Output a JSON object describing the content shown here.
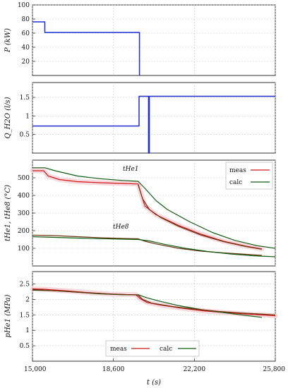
{
  "figure": {
    "x_axis": {
      "label": "t (s)",
      "range": [
        15000,
        25800
      ],
      "ticks": [
        15000,
        18600,
        22200,
        25800
      ],
      "tick_labels": [
        "15,000",
        "18,600",
        "22,200",
        "25,800"
      ]
    }
  },
  "colors": {
    "blue": "#1f2fd0",
    "meas": "#d01818",
    "calc": "#105c10",
    "brown": "#6a3410",
    "grid": "#c8c8c8",
    "band": "#f6cfd4"
  },
  "chart_data": [
    {
      "type": "line",
      "ylabel": "P (kW)",
      "ylim": [
        0,
        100
      ],
      "yticks": [
        20,
        40,
        60,
        80,
        100
      ],
      "grid": true,
      "series": [
        {
          "color": "blue",
          "step": true,
          "points": [
            [
              15000,
              76
            ],
            [
              15550,
              76
            ],
            [
              15550,
              61
            ],
            [
              19760,
              61
            ],
            [
              19760,
              0
            ]
          ]
        }
      ]
    },
    {
      "type": "line",
      "ylabel": "Q_H2O (l/s)",
      "ylim": [
        0,
        1.9
      ],
      "yticks": [
        0.5,
        1,
        1.5
      ],
      "grid": true,
      "series": [
        {
          "color": "blue",
          "step": true,
          "points": [
            [
              15000,
              0.73
            ],
            [
              19740,
              0.73
            ],
            [
              19740,
              1.53
            ],
            [
              20160,
              1.53
            ],
            [
              20160,
              0
            ],
            [
              20200,
              0
            ],
            [
              20200,
              1.53
            ],
            [
              25800,
              1.53
            ]
          ]
        }
      ]
    },
    {
      "type": "line",
      "ylabel": "tHe1, tHe8 (°C)",
      "ylim": [
        0,
        600
      ],
      "yticks": [
        100,
        200,
        300,
        400,
        500
      ],
      "grid": true,
      "annotations": [
        "tHe1",
        "tHe8"
      ],
      "legend": {
        "position": "top-right",
        "entries": [
          "meas",
          "calc"
        ]
      },
      "series": [
        {
          "name": "meas",
          "color": "meas",
          "points": [
            [
              15000,
              540
            ],
            [
              15500,
              540
            ],
            [
              15700,
              510
            ],
            [
              16200,
              490
            ],
            [
              17000,
              478
            ],
            [
              18000,
              472
            ],
            [
              19000,
              468
            ],
            [
              19700,
              465
            ],
            [
              19850,
              400
            ],
            [
              20000,
              340
            ],
            [
              20500,
              290
            ],
            [
              21500,
              230
            ],
            [
              22500,
              180
            ],
            [
              23500,
              140
            ],
            [
              24500,
              112
            ],
            [
              25200,
              97
            ]
          ]
        },
        {
          "name": "calc",
          "color": "calc",
          "points": [
            [
              15000,
              557
            ],
            [
              15550,
              557
            ],
            [
              16000,
              540
            ],
            [
              17000,
              510
            ],
            [
              18000,
              495
            ],
            [
              19000,
              485
            ],
            [
              19700,
              480
            ],
            [
              20000,
              440
            ],
            [
              20500,
              370
            ],
            [
              21000,
              320
            ],
            [
              22000,
              250
            ],
            [
              23000,
              190
            ],
            [
              24000,
              145
            ],
            [
              25000,
              115
            ],
            [
              25800,
              100
            ]
          ]
        },
        {
          "name": "meas",
          "color": "brown",
          "points": [
            [
              15000,
              175
            ],
            [
              16000,
              172
            ],
            [
              17000,
              166
            ],
            [
              18000,
              160
            ],
            [
              19000,
              156
            ],
            [
              19700,
              154
            ],
            [
              20000,
              140
            ],
            [
              20500,
              125
            ],
            [
              21500,
              100
            ],
            [
              22500,
              84
            ],
            [
              23500,
              74
            ],
            [
              24500,
              66
            ],
            [
              25200,
              60
            ]
          ]
        },
        {
          "name": "calc",
          "color": "calc",
          "points": [
            [
              15000,
              166
            ],
            [
              16000,
              162
            ],
            [
              17000,
              158
            ],
            [
              18000,
              155
            ],
            [
              19000,
              152
            ],
            [
              19700,
              150
            ],
            [
              20200,
              142
            ],
            [
              20800,
              125
            ],
            [
              21800,
              100
            ],
            [
              22800,
              82
            ],
            [
              23800,
              68
            ],
            [
              24800,
              58
            ],
            [
              25800,
              52
            ]
          ]
        },
        {
          "name": "meas",
          "color": "brown",
          "points": [
            [
              19700,
              460
            ],
            [
              19900,
              380
            ],
            [
              20200,
              320
            ],
            [
              20700,
              275
            ],
            [
              21500,
              225
            ],
            [
              22500,
              175
            ],
            [
              23500,
              138
            ],
            [
              24500,
              110
            ],
            [
              25200,
              95
            ]
          ]
        }
      ]
    },
    {
      "type": "line",
      "ylabel": "pHe1 (MPa)",
      "ylim": [
        0,
        2.9
      ],
      "yticks": [
        0.5,
        1,
        1.5,
        2,
        2.5
      ],
      "grid": true,
      "legend": {
        "position": "bottom-center",
        "entries": [
          "meas",
          "calc"
        ]
      },
      "series": [
        {
          "name": "meas",
          "color": "meas",
          "points": [
            [
              15000,
              2.34
            ],
            [
              15500,
              2.33
            ],
            [
              16500,
              2.28
            ],
            [
              17500,
              2.22
            ],
            [
              18500,
              2.17
            ],
            [
              19600,
              2.15
            ],
            [
              19800,
              2.02
            ],
            [
              20100,
              1.9
            ],
            [
              20600,
              1.83
            ],
            [
              21600,
              1.72
            ],
            [
              22600,
              1.63
            ],
            [
              23600,
              1.57
            ],
            [
              24600,
              1.52
            ],
            [
              25800,
              1.47
            ]
          ]
        },
        {
          "name": "calc",
          "color": "calc",
          "points": [
            [
              15000,
              2.3
            ],
            [
              16000,
              2.28
            ],
            [
              17000,
              2.23
            ],
            [
              18000,
              2.18
            ],
            [
              19000,
              2.15
            ],
            [
              19700,
              2.15
            ],
            [
              20100,
              2.05
            ],
            [
              20600,
              1.95
            ],
            [
              21500,
              1.8
            ],
            [
              22500,
              1.67
            ],
            [
              23500,
              1.57
            ],
            [
              24500,
              1.48
            ],
            [
              25200,
              1.42
            ]
          ]
        },
        {
          "name": "meas",
          "color": "brown",
          "points": [
            [
              15000,
              2.32
            ],
            [
              16500,
              2.26
            ],
            [
              17800,
              2.2
            ],
            [
              19700,
              2.14
            ],
            [
              19900,
              2.0
            ],
            [
              20300,
              1.88
            ],
            [
              21300,
              1.76
            ],
            [
              22300,
              1.68
            ],
            [
              23300,
              1.61
            ],
            [
              24300,
              1.56
            ],
            [
              25800,
              1.5
            ]
          ]
        }
      ]
    }
  ]
}
